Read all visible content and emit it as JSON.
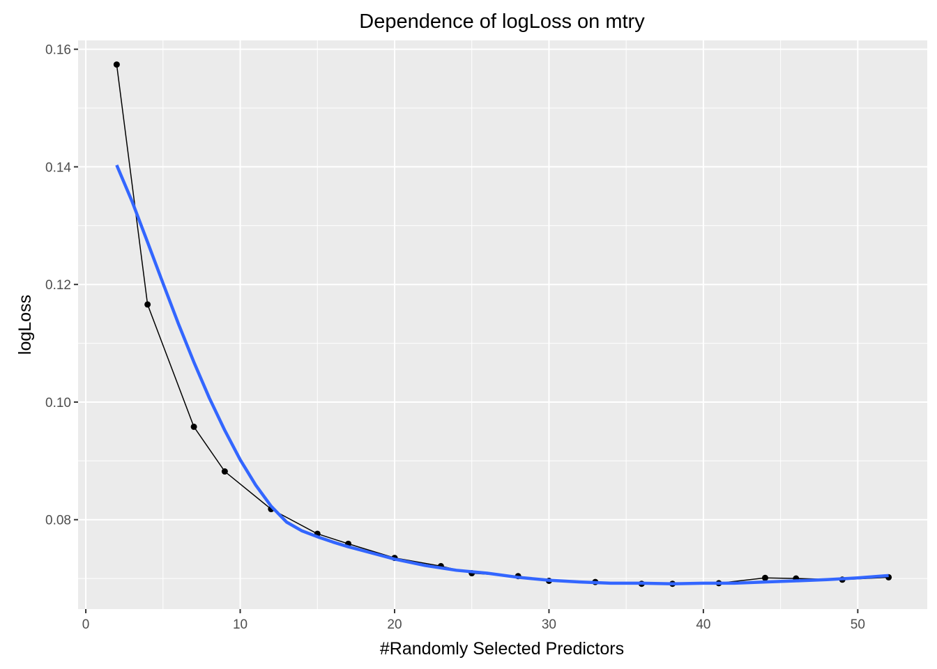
{
  "chart_data": {
    "type": "line",
    "title": "Dependence of logLoss on mtry",
    "xlabel": "#Randomly Selected Predictors",
    "ylabel": "logLoss",
    "xlim": [
      -0.5,
      54.5
    ],
    "ylim": [
      0.0648,
      0.1615
    ],
    "x_ticks": [
      0,
      10,
      20,
      30,
      40,
      50
    ],
    "y_ticks": [
      0.08,
      0.1,
      0.12,
      0.14,
      0.16
    ],
    "x_tick_labels": [
      "0",
      "10",
      "20",
      "30",
      "40",
      "50"
    ],
    "y_tick_labels": [
      "0.08",
      "0.10",
      "0.12",
      "0.14",
      "0.16"
    ],
    "grid": true,
    "legend": "none",
    "series": [
      {
        "kind": "points-line",
        "color": "#000000",
        "x": [
          2,
          4,
          7,
          9,
          12,
          15,
          17,
          20,
          23,
          25,
          28,
          30,
          33,
          36,
          38,
          41,
          44,
          46,
          49,
          52
        ],
        "y": [
          0.1574,
          0.1166,
          0.0958,
          0.0882,
          0.0818,
          0.0776,
          0.0759,
          0.0735,
          0.0721,
          0.0709,
          0.0704,
          0.0696,
          0.0694,
          0.0691,
          0.0691,
          0.0692,
          0.0701,
          0.07,
          0.0698,
          0.0702
        ]
      },
      {
        "kind": "smooth",
        "color": "#3366ff",
        "x": [
          2,
          3,
          4,
          5,
          6,
          7,
          8,
          9,
          10,
          11,
          12,
          13,
          14,
          15,
          16,
          17,
          18,
          19,
          20,
          22,
          24,
          26,
          28,
          30,
          32,
          34,
          36,
          38,
          40,
          42,
          44,
          46,
          48,
          50,
          52
        ],
        "y": [
          0.1403,
          0.1341,
          0.1272,
          0.1202,
          0.1133,
          0.1068,
          0.1007,
          0.0952,
          0.0902,
          0.0859,
          0.0823,
          0.0796,
          0.0781,
          0.0771,
          0.0762,
          0.0754,
          0.0747,
          0.074,
          0.0733,
          0.0722,
          0.0714,
          0.0709,
          0.0702,
          0.0697,
          0.0694,
          0.0692,
          0.0692,
          0.0691,
          0.0692,
          0.0692,
          0.0694,
          0.0696,
          0.0698,
          0.0701,
          0.0705
        ]
      }
    ]
  }
}
